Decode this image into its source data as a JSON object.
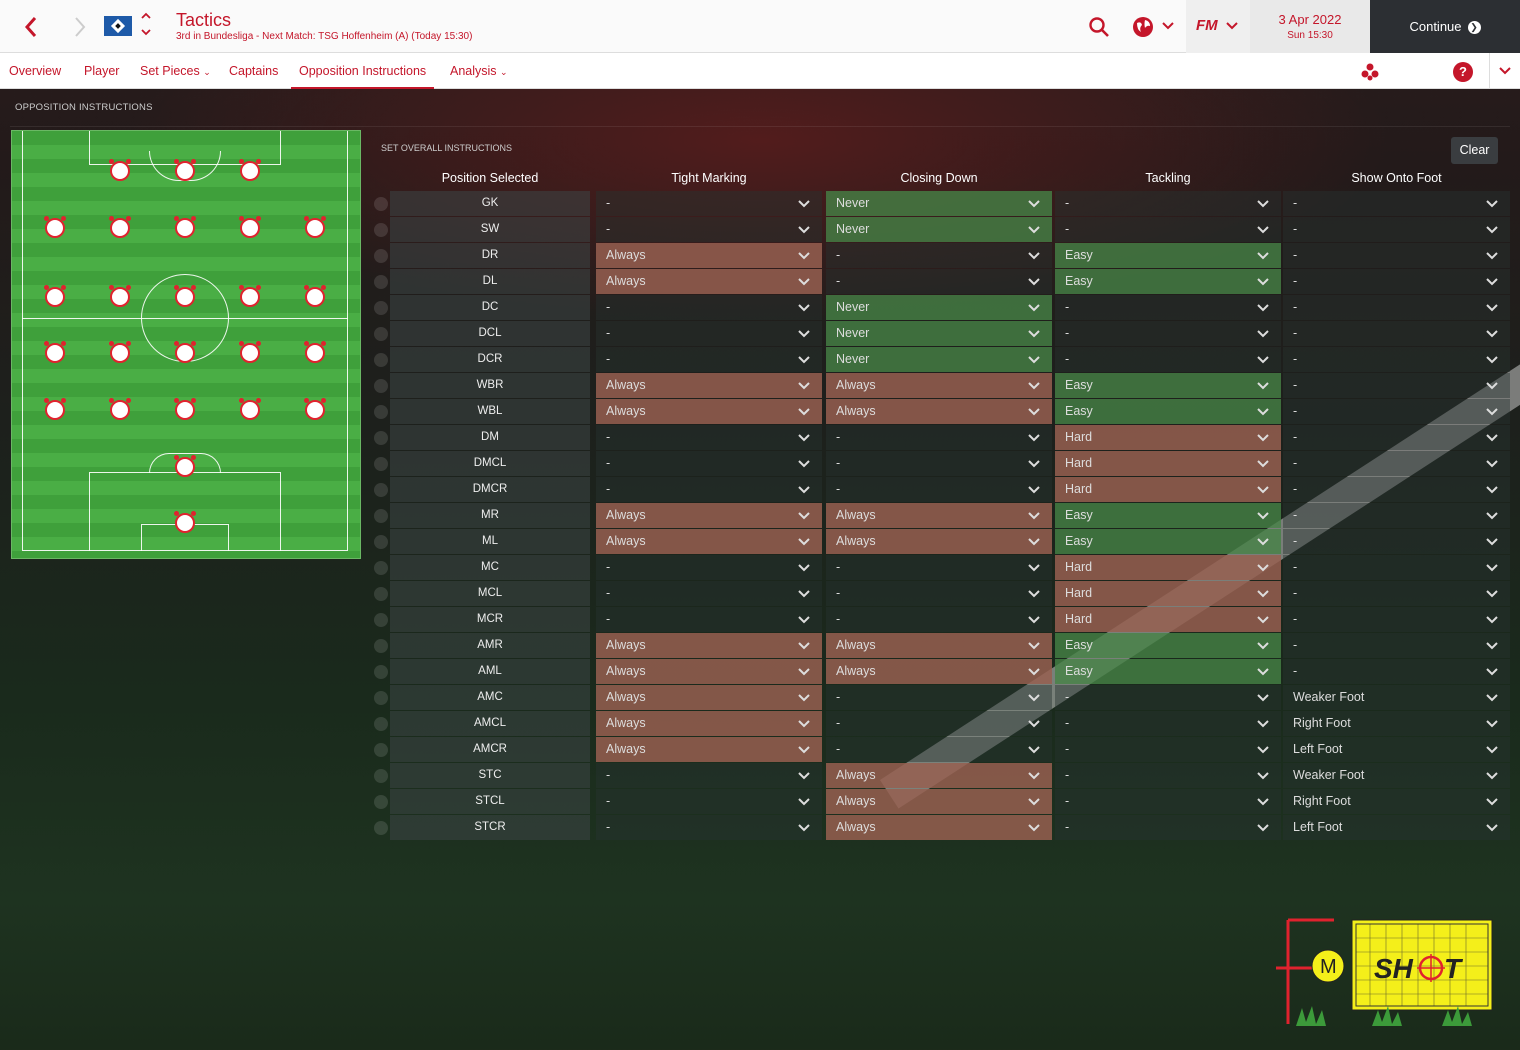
{
  "header": {
    "title": "Tactics",
    "subtitle": "3rd in Bundesliga - Next Match: TSG Hoffenheim (A) (Today 15:30)",
    "date": "3 Apr 2022",
    "time": "Sun 15:30",
    "continue_label": "Continue",
    "fm_label": "FM",
    "accent_color": "#c4162a"
  },
  "tabs": [
    {
      "label": "Overview"
    },
    {
      "label": "Player"
    },
    {
      "label": "Set Pieces",
      "dropdown": true
    },
    {
      "label": "Captains"
    },
    {
      "label": "Opposition Instructions",
      "active": true
    },
    {
      "label": "Analysis",
      "dropdown": true
    }
  ],
  "section_title": "OPPOSITION INSTRUCTIONS",
  "overall_label": "SET OVERALL INSTRUCTIONS",
  "clear_label": "Clear",
  "columns": [
    "Position Selected",
    "Tight Marking",
    "Closing Down",
    "Tackling",
    "Show Onto Foot"
  ],
  "rows": [
    {
      "pos": "GK",
      "tm": "-",
      "cd": "Never",
      "tk": "-",
      "sf": "-"
    },
    {
      "pos": "SW",
      "tm": "-",
      "cd": "Never",
      "tk": "-",
      "sf": "-"
    },
    {
      "pos": "DR",
      "tm": "Always",
      "cd": "-",
      "tk": "Easy",
      "sf": "-"
    },
    {
      "pos": "DL",
      "tm": "Always",
      "cd": "-",
      "tk": "Easy",
      "sf": "-"
    },
    {
      "pos": "DC",
      "tm": "-",
      "cd": "Never",
      "tk": "-",
      "sf": "-"
    },
    {
      "pos": "DCL",
      "tm": "-",
      "cd": "Never",
      "tk": "-",
      "sf": "-"
    },
    {
      "pos": "DCR",
      "tm": "-",
      "cd": "Never",
      "tk": "-",
      "sf": "-"
    },
    {
      "pos": "WBR",
      "tm": "Always",
      "cd": "Always",
      "tk": "Easy",
      "sf": "-"
    },
    {
      "pos": "WBL",
      "tm": "Always",
      "cd": "Always",
      "tk": "Easy",
      "sf": "-"
    },
    {
      "pos": "DM",
      "tm": "-",
      "cd": "-",
      "tk": "Hard",
      "sf": "-"
    },
    {
      "pos": "DMCL",
      "tm": "-",
      "cd": "-",
      "tk": "Hard",
      "sf": "-"
    },
    {
      "pos": "DMCR",
      "tm": "-",
      "cd": "-",
      "tk": "Hard",
      "sf": "-"
    },
    {
      "pos": "MR",
      "tm": "Always",
      "cd": "Always",
      "tk": "Easy",
      "sf": "-"
    },
    {
      "pos": "ML",
      "tm": "Always",
      "cd": "Always",
      "tk": "Easy",
      "sf": "-"
    },
    {
      "pos": "MC",
      "tm": "-",
      "cd": "-",
      "tk": "Hard",
      "sf": "-"
    },
    {
      "pos": "MCL",
      "tm": "-",
      "cd": "-",
      "tk": "Hard",
      "sf": "-"
    },
    {
      "pos": "MCR",
      "tm": "-",
      "cd": "-",
      "tk": "Hard",
      "sf": "-"
    },
    {
      "pos": "AMR",
      "tm": "Always",
      "cd": "Always",
      "tk": "Easy",
      "sf": "-"
    },
    {
      "pos": "AML",
      "tm": "Always",
      "cd": "Always",
      "tk": "Easy",
      "sf": "-"
    },
    {
      "pos": "AMC",
      "tm": "Always",
      "cd": "-",
      "tk": "-",
      "sf": "Weaker Foot"
    },
    {
      "pos": "AMCL",
      "tm": "Always",
      "cd": "-",
      "tk": "-",
      "sf": "Right Foot"
    },
    {
      "pos": "AMCR",
      "tm": "Always",
      "cd": "-",
      "tk": "-",
      "sf": "Left Foot"
    },
    {
      "pos": "STC",
      "tm": "-",
      "cd": "Always",
      "tk": "-",
      "sf": "Weaker Foot"
    },
    {
      "pos": "STCL",
      "tm": "-",
      "cd": "Always",
      "tk": "-",
      "sf": "Right Foot"
    },
    {
      "pos": "STCR",
      "tm": "-",
      "cd": "Always",
      "tk": "-",
      "sf": "Left Foot"
    }
  ],
  "pitch_positions": [
    [
      "STCR",
      "STC",
      "STCL"
    ],
    [
      "AML",
      "AMCL",
      "AMC",
      "AMCR",
      "AMR"
    ],
    [
      "ML",
      "MCL",
      "MC",
      "MCR",
      "MR"
    ],
    [
      "WBL",
      "DMCL",
      "DM",
      "DMCR",
      "WBR"
    ],
    [
      "DL",
      "DCL",
      "DC",
      "DCR",
      "DR"
    ],
    [
      "SW"
    ],
    [
      "GK"
    ]
  ],
  "watermark": {
    "text": "F M SHOT"
  }
}
